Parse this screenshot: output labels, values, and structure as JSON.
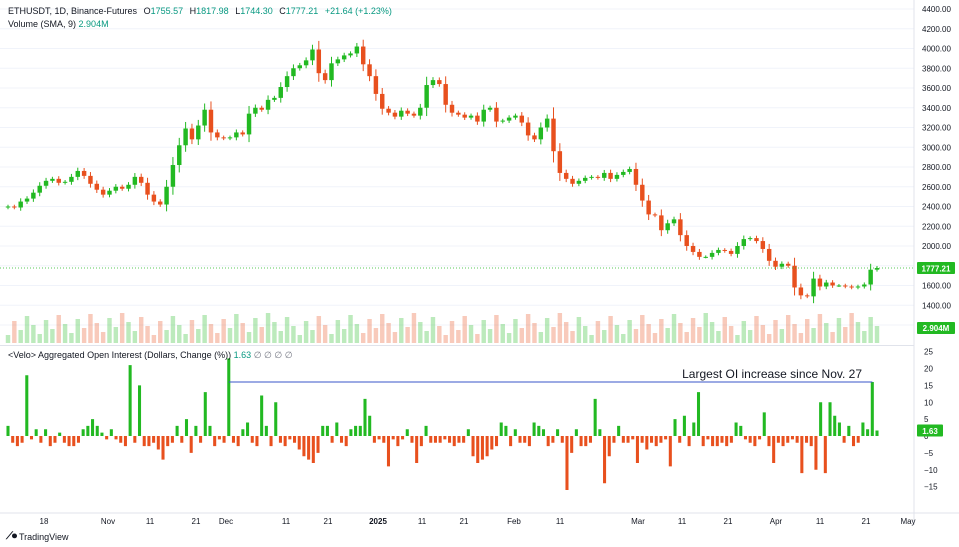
{
  "header": {
    "symbol": "ETHUSDT, 1D, Binance-Futures",
    "o_label": "O",
    "o": "1755.57",
    "h_label": "H",
    "h": "1817.98",
    "l_label": "L",
    "l": "1744.30",
    "c_label": "C",
    "c": "1777.21",
    "change": "+21.64 (+1.23%)",
    "volume_label": "Volume (SMA, 9)",
    "volume_value": "2.904M"
  },
  "oi_header": {
    "label": "<Velo> Aggregated Open Interest (Dollars, Change (%))",
    "value": "1.63",
    "placeholders": "∅ ∅ ∅ ∅"
  },
  "branding": {
    "name": "TradingView"
  },
  "colors": {
    "up": "#22b922",
    "down": "#e8501e",
    "line": "#3a55c8",
    "price_tag": "#22b922"
  },
  "chart_data": [
    {
      "type": "candlestick",
      "title": "ETHUSDT, 1D, Binance-Futures",
      "ylim": [
        1200,
        4400
      ],
      "y_ticks": [
        1200,
        1400,
        1600,
        1800,
        2000,
        2200,
        2400,
        2600,
        2800,
        3000,
        3200,
        3400,
        3600,
        3800,
        4000,
        4200,
        4400
      ],
      "last_price_label": "1777.21",
      "x_ticks": [
        "18",
        "Nov",
        "11",
        "21",
        "Dec",
        "11",
        "21",
        "2025",
        "11",
        "21",
        "Feb",
        "11",
        "Mar",
        "11",
        "21",
        "Apr",
        "11",
        "21",
        "May"
      ],
      "close": [
        2400,
        2390,
        2450,
        2480,
        2540,
        2610,
        2660,
        2680,
        2640,
        2650,
        2700,
        2760,
        2710,
        2630,
        2570,
        2520,
        2560,
        2600,
        2580,
        2620,
        2700,
        2640,
        2520,
        2450,
        2420,
        2600,
        2820,
        3020,
        3190,
        3080,
        3220,
        3380,
        3150,
        3100,
        3090,
        3100,
        3150,
        3130,
        3340,
        3400,
        3380,
        3480,
        3500,
        3610,
        3720,
        3800,
        3830,
        3880,
        3990,
        3750,
        3680,
        3850,
        3890,
        3930,
        3950,
        4020,
        3840,
        3720,
        3540,
        3390,
        3350,
        3310,
        3370,
        3340,
        3320,
        3400,
        3630,
        3680,
        3640,
        3430,
        3350,
        3330,
        3300,
        3320,
        3260,
        3380,
        3400,
        3260,
        3270,
        3300,
        3320,
        3250,
        3120,
        3080,
        3200,
        3290,
        2960,
        2740,
        2680,
        2630,
        2660,
        2690,
        2700,
        2690,
        2740,
        2680,
        2720,
        2750,
        2780,
        2620,
        2460,
        2320,
        2310,
        2160,
        2230,
        2270,
        2110,
        2000,
        1940,
        1890,
        1890,
        1930,
        1960,
        1950,
        1920,
        2000,
        2070,
        2080,
        2050,
        1970,
        1850,
        1790,
        1820,
        1800,
        1580,
        1500,
        1490,
        1670,
        1590,
        1630,
        1600,
        1600,
        1590,
        1580,
        1590,
        1610,
        1760,
        1777
      ],
      "volume_unit": "M",
      "volume_last": 2.904
    },
    {
      "type": "bar",
      "title": "<Velo> Aggregated Open Interest (Dollars, Change (%))",
      "ylim": [
        -20,
        25
      ],
      "y_ticks": [
        -15,
        -10,
        -5,
        0,
        5,
        10,
        15,
        20,
        25
      ],
      "last_value_label": "1.63",
      "annotation": "Largest OI increase since Nov. 27",
      "values": [
        3,
        -2,
        -3,
        -2,
        18,
        -1,
        2,
        -2,
        2,
        -3,
        -2,
        1,
        -2,
        -3,
        -3,
        -2,
        2,
        3,
        5,
        3,
        1,
        -1,
        2,
        -1,
        -2,
        -3,
        21,
        -2,
        15,
        -3,
        -3,
        -2,
        -4,
        -7,
        -3,
        -2,
        3,
        -2,
        5,
        -5,
        3,
        -2,
        13,
        3,
        -3,
        -1,
        -2,
        23,
        -2,
        -3,
        2,
        4,
        -2,
        -3,
        12,
        3,
        -3,
        10,
        -2,
        -3,
        -1,
        -2,
        -4,
        -6,
        -7,
        -8,
        -5,
        3,
        3,
        -2,
        4,
        -2,
        -3,
        2,
        3,
        3,
        11,
        6,
        -2,
        -1,
        -2,
        -9,
        -1,
        -3,
        -1,
        2,
        -2,
        -8,
        -3,
        3,
        -2,
        -2,
        -2,
        -1,
        -2,
        -3,
        -2,
        -2,
        2,
        -6,
        -8,
        -7,
        -6,
        -4,
        -3,
        4,
        3,
        -3,
        2,
        -2,
        -2,
        -3,
        4,
        3,
        2,
        -3,
        -2,
        2,
        -2,
        -16,
        -5,
        2,
        -3,
        -3,
        -2,
        11,
        2,
        -14,
        -6,
        -2,
        3,
        -2,
        -2,
        -1,
        -8,
        -2,
        -4,
        -2,
        -3,
        -2,
        -1,
        -9,
        5,
        -2,
        6,
        -3,
        4,
        13,
        -3,
        -1,
        -3,
        -3,
        -2,
        -3,
        -2,
        4,
        3,
        -1,
        -2,
        -3,
        -1,
        7,
        -3,
        -8,
        -2,
        -3,
        -2,
        -1,
        -2,
        -11,
        -2,
        -3,
        -10,
        10,
        -11,
        10,
        6,
        4,
        -2,
        3,
        -3,
        -2,
        4,
        2,
        16,
        1.63
      ]
    }
  ]
}
